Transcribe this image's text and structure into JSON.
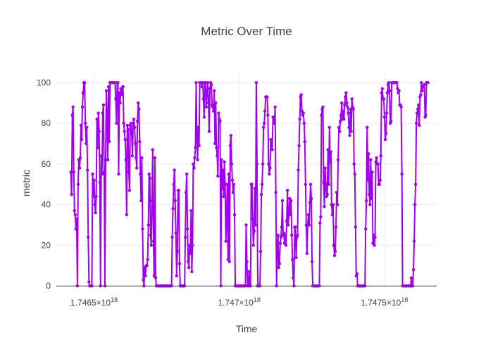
{
  "chart_data": {
    "type": "line",
    "title": "Metric Over Time",
    "xlabel": "Time",
    "ylabel": "metric",
    "xlim": [
      1.74637e+18,
      1.74768e+18
    ],
    "ylim": [
      -2,
      106
    ],
    "x_tick_values": [
      1.7465e+18,
      1.747e+18,
      1.7475e+18
    ],
    "x_tick_labels": [
      {
        "mantissa": "1.7465×10",
        "exponent": "18"
      },
      {
        "mantissa": "1.747×10",
        "exponent": "18"
      },
      {
        "mantissa": "1.7475×10",
        "exponent": "18"
      }
    ],
    "y_ticks": [
      0,
      20,
      40,
      60,
      80,
      100
    ],
    "grid": true,
    "legend": "none",
    "colors": {
      "line": "#a000f0",
      "grid": "#eeeeee",
      "zero_line": "#444444"
    },
    "series": [
      {
        "x_start": 1.74642e+18,
        "x_end": 1.74765e+18,
        "values": [
          56,
          45,
          84,
          88,
          56,
          37,
          35,
          28,
          33,
          0,
          50,
          62,
          58,
          63,
          79,
          72,
          88,
          95,
          100,
          100,
          80,
          70,
          78,
          57,
          24,
          2,
          0,
          0,
          0,
          0,
          55,
          44,
          52,
          40,
          36,
          44,
          82,
          68,
          85,
          76,
          51,
          0,
          64,
          55,
          85,
          89,
          56,
          0,
          62,
          96,
          82,
          62,
          98,
          71,
          100,
          100,
          100,
          100,
          100,
          100,
          100,
          100,
          92,
          80,
          100,
          100,
          55,
          95,
          90,
          97,
          96,
          94,
          98,
          80,
          76,
          72,
          62,
          35,
          79,
          77,
          56,
          47,
          79,
          80,
          75,
          64,
          80,
          82,
          78,
          70,
          63,
          58,
          81,
          90,
          87,
          71,
          55,
          42,
          63,
          28,
          3,
          0,
          9,
          5,
          10,
          10,
          13,
          30,
          55,
          53,
          25,
          20,
          42,
          67,
          22,
          5,
          63,
          4,
          0,
          0,
          0,
          0,
          0,
          0,
          0,
          0,
          0,
          0,
          0,
          0,
          0,
          0,
          0,
          0,
          0,
          0,
          0,
          0,
          0,
          0,
          24,
          38,
          50,
          57,
          42,
          26,
          5,
          17,
          47,
          47,
          11,
          0,
          0,
          0,
          0,
          0,
          0,
          0,
          24,
          46,
          55,
          28,
          12,
          9,
          20,
          16,
          37,
          7,
          20,
          60,
          58,
          63,
          68,
          100,
          72,
          62,
          78,
          69,
          100,
          100,
          100,
          98,
          100,
          92,
          83,
          100,
          100,
          88,
          95,
          100,
          90,
          76,
          97,
          100,
          99,
          89,
          88,
          86,
          96,
          70,
          90,
          68,
          64,
          54,
          85,
          82,
          81,
          0,
          62,
          48,
          57,
          44,
          61,
          50,
          22,
          35,
          50,
          13,
          55,
          12,
          69,
          74,
          60,
          52,
          46,
          50,
          35,
          0,
          0,
          0,
          0,
          0,
          0,
          0,
          0,
          0,
          0,
          0,
          0,
          0,
          0,
          0,
          30,
          12,
          0,
          0,
          7,
          0,
          0,
          50,
          50,
          33,
          20,
          27,
          48,
          30,
          100,
          60,
          0,
          0,
          0,
          0,
          17,
          45,
          50,
          60,
          78,
          80,
          86,
          93,
          93,
          93,
          84,
          60,
          55,
          58,
          72,
          70,
          67,
          83,
          83,
          80,
          88,
          46,
          0,
          19,
          25,
          9,
          11,
          21,
          24,
          29,
          42,
          25,
          26,
          21,
          25,
          20,
          32,
          47,
          30,
          35,
          43,
          35,
          42,
          25,
          13,
          4,
          0,
          29,
          29,
          14,
          24,
          25,
          57,
          69,
          82,
          93,
          94,
          86,
          84,
          85,
          80,
          71,
          50,
          30,
          16,
          30,
          35,
          30,
          41,
          50,
          43,
          12,
          0,
          0,
          0,
          0,
          0,
          0,
          0,
          0,
          0,
          0,
          31,
          34,
          84,
          87,
          88,
          51,
          39,
          58,
          50,
          44,
          45,
          67,
          50,
          78,
          61,
          66,
          40,
          35,
          40,
          20,
          15,
          17,
          29,
          46,
          40,
          62,
          78,
          76,
          81,
          84,
          90,
          82,
          86,
          82,
          89,
          93,
          95,
          90,
          88,
          85,
          78,
          74,
          87,
          76,
          92,
          88,
          87,
          60,
          55,
          29,
          5,
          6,
          0,
          0,
          0,
          0,
          0,
          0,
          0,
          0,
          0,
          0,
          0,
          28,
          42,
          78,
          52,
          65,
          45,
          40,
          62,
          43,
          56,
          21,
          25,
          20,
          24,
          61,
          63,
          60,
          60,
          50,
          50,
          52,
          64,
          95,
          97,
          92,
          92,
          83,
          72,
          75,
          85,
          95,
          99,
          100,
          96,
          80,
          81,
          100,
          100,
          100,
          100,
          100,
          100,
          100,
          100,
          97,
          95,
          96,
          89,
          89,
          88,
          55,
          0,
          0,
          0,
          0,
          0,
          0,
          0,
          0,
          0,
          0,
          0,
          0,
          4,
          0,
          0,
          8,
          22,
          40,
          50,
          80,
          85,
          87,
          89,
          79,
          93,
          94,
          100,
          96,
          98,
          98,
          99,
          83,
          84,
          100,
          100,
          100
        ]
      }
    ]
  }
}
